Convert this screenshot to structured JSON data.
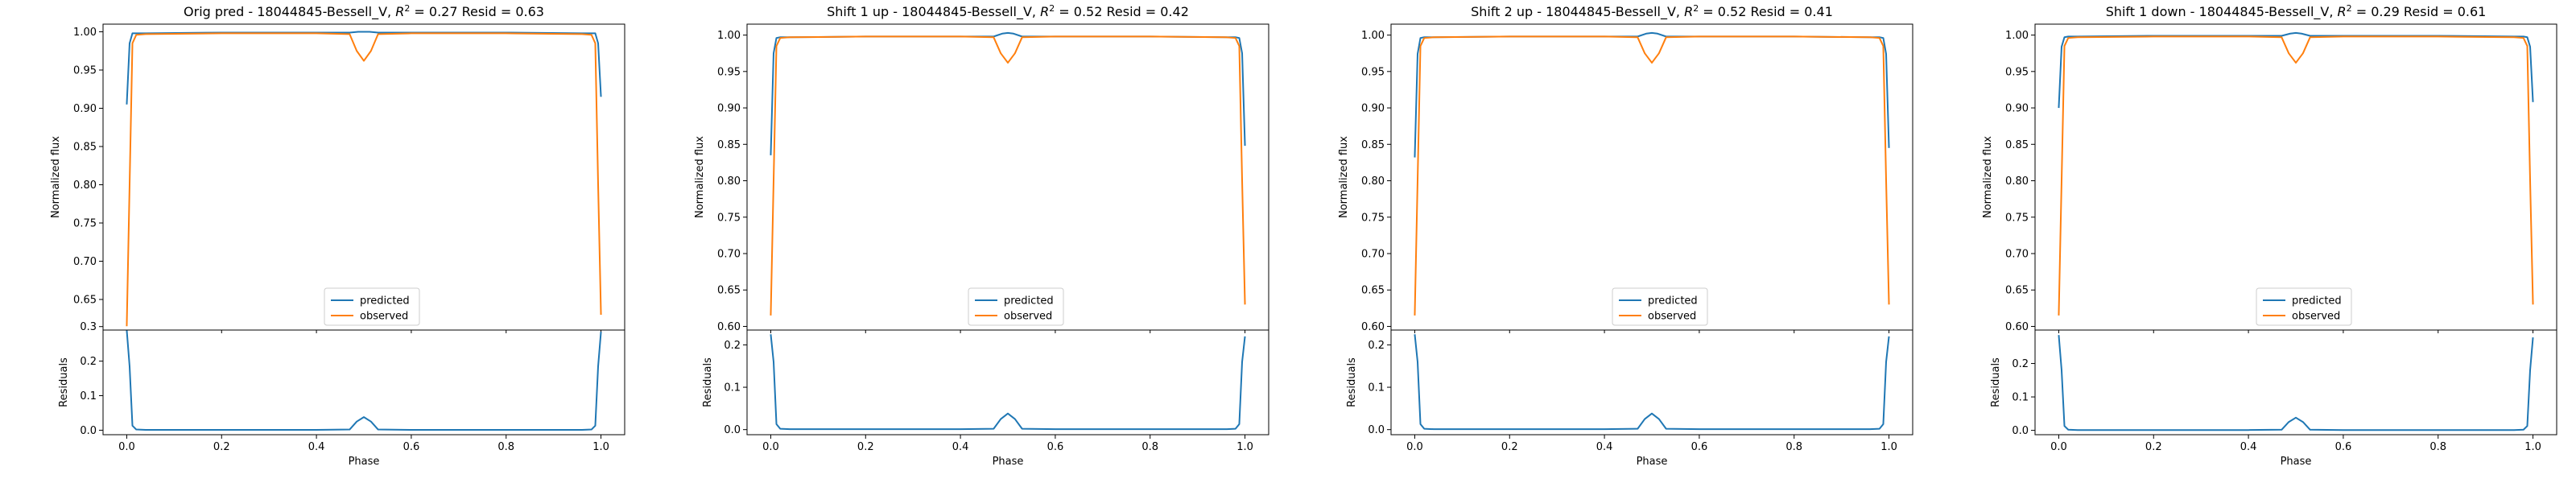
{
  "figure": {
    "colors": {
      "predicted": "#1f77b4",
      "observed": "#ff7f0e",
      "axes": "#000000",
      "background": "#ffffff"
    }
  },
  "chart_data": [
    {
      "type": "line",
      "title": "Orig pred - 18044845-Bessell_V, R² = 0.27 Resid = 0.63",
      "title_parts": [
        "Orig pred - 18044845-Bessell_V, ",
        "R",
        "2",
        " = 0.27 Resid = 0.63"
      ],
      "legend": {
        "entries": [
          "predicted",
          "observed"
        ],
        "placement": "lower-center"
      },
      "flux": {
        "ylabel": "Normalized flux",
        "ylim": [
          0.61,
          1.01
        ],
        "yticks": [
          0.65,
          0.7,
          0.75,
          0.8,
          0.85,
          0.9,
          0.95,
          1.0
        ],
        "ytick_labels": [
          "0.65",
          "0.70",
          "0.75",
          "0.80",
          "0.85",
          "0.90",
          "0.95",
          "1.00"
        ],
        "series": [
          {
            "name": "predicted",
            "x": [
              0,
              0.006,
              0.012,
              0.02,
              0.04,
              0.2,
              0.4,
              0.47,
              0.488,
              0.5,
              0.512,
              0.53,
              0.6,
              0.8,
              0.96,
              0.98,
              0.988,
              0.994,
              1.0
            ],
            "y": [
              0.905,
              0.985,
              0.998,
              0.998,
              0.998,
              0.999,
              0.999,
              0.999,
              1.0,
              1.0,
              1.0,
              0.999,
              0.999,
              0.999,
              0.998,
              0.998,
              0.998,
              0.985,
              0.915
            ]
          },
          {
            "name": "observed",
            "x": [
              0,
              0.006,
              0.012,
              0.02,
              0.04,
              0.2,
              0.4,
              0.47,
              0.485,
              0.5,
              0.515,
              0.53,
              0.6,
              0.8,
              0.96,
              0.98,
              0.988,
              0.994,
              1.0
            ],
            "y": [
              0.615,
              0.8,
              0.985,
              0.996,
              0.997,
              0.998,
              0.998,
              0.997,
              0.975,
              0.962,
              0.975,
              0.997,
              0.998,
              0.998,
              0.997,
              0.996,
              0.985,
              0.8,
              0.63
            ]
          }
        ]
      },
      "residuals": {
        "ylabel": "Residuals",
        "xlabel": "Phase",
        "xlim": [
          -0.05,
          1.05
        ],
        "xticks": [
          0.0,
          0.2,
          0.4,
          0.6,
          0.8,
          1.0
        ],
        "xtick_labels": [
          "0.0",
          "0.2",
          "0.4",
          "0.6",
          "0.8",
          "1.0"
        ],
        "ylim": [
          -0.013,
          0.29
        ],
        "yticks": [
          0.0,
          0.1,
          0.2,
          0.3
        ],
        "ytick_labels": [
          "0.0",
          "0.1",
          "0.2",
          "0.3"
        ],
        "series": [
          {
            "name": "residuals",
            "x": [
              0,
              0.006,
              0.012,
              0.02,
              0.04,
              0.2,
              0.4,
              0.47,
              0.485,
              0.5,
              0.515,
              0.53,
              0.6,
              0.8,
              0.96,
              0.98,
              0.988,
              0.994,
              1.0
            ],
            "y": [
              0.29,
              0.185,
              0.013,
              0.002,
              0.001,
              0.001,
              0.001,
              0.002,
              0.025,
              0.038,
              0.025,
              0.002,
              0.001,
              0.001,
              0.001,
              0.002,
              0.013,
              0.185,
              0.285
            ]
          }
        ]
      }
    },
    {
      "type": "line",
      "title": "Shift 1 up - 18044845-Bessell_V, R² = 0.52 Resid = 0.42",
      "title_parts": [
        "Shift 1 up - 18044845-Bessell_V, ",
        "R",
        "2",
        " = 0.52 Resid = 0.42"
      ],
      "legend": {
        "entries": [
          "predicted",
          "observed"
        ],
        "placement": "lower-center"
      },
      "flux": {
        "ylabel": "Normalized flux",
        "ylim": [
          0.595,
          1.015
        ],
        "yticks": [
          0.6,
          0.65,
          0.7,
          0.75,
          0.8,
          0.85,
          0.9,
          0.95,
          1.0
        ],
        "ytick_labels": [
          "0.60",
          "0.65",
          "0.70",
          "0.75",
          "0.80",
          "0.85",
          "0.90",
          "0.95",
          "1.00"
        ],
        "series": [
          {
            "name": "predicted",
            "x": [
              0,
              0.006,
              0.012,
              0.02,
              0.04,
              0.2,
              0.4,
              0.47,
              0.488,
              0.5,
              0.512,
              0.53,
              0.6,
              0.8,
              0.96,
              0.98,
              0.988,
              0.994,
              1.0
            ],
            "y": [
              0.835,
              0.975,
              0.996,
              0.997,
              0.997,
              0.998,
              0.998,
              0.998,
              1.002,
              1.003,
              1.002,
              0.998,
              0.998,
              0.998,
              0.997,
              0.997,
              0.996,
              0.975,
              0.848
            ]
          },
          {
            "name": "observed",
            "x": [
              0,
              0.006,
              0.012,
              0.02,
              0.04,
              0.2,
              0.4,
              0.47,
              0.485,
              0.5,
              0.515,
              0.53,
              0.6,
              0.8,
              0.96,
              0.98,
              0.988,
              0.994,
              1.0
            ],
            "y": [
              0.615,
              0.8,
              0.985,
              0.996,
              0.997,
              0.998,
              0.998,
              0.997,
              0.975,
              0.962,
              0.975,
              0.997,
              0.998,
              0.998,
              0.997,
              0.996,
              0.985,
              0.8,
              0.63
            ]
          }
        ]
      },
      "residuals": {
        "ylabel": "Residuals",
        "xlabel": "Phase",
        "xlim": [
          -0.05,
          1.05
        ],
        "xticks": [
          0.0,
          0.2,
          0.4,
          0.6,
          0.8,
          1.0
        ],
        "xtick_labels": [
          "0.0",
          "0.2",
          "0.4",
          "0.6",
          "0.8",
          "1.0"
        ],
        "ylim": [
          -0.012,
          0.235
        ],
        "yticks": [
          0.0,
          0.1,
          0.2
        ],
        "ytick_labels": [
          "0.0",
          "0.1",
          "0.2"
        ],
        "series": [
          {
            "name": "residuals",
            "x": [
              0,
              0.006,
              0.012,
              0.02,
              0.04,
              0.2,
              0.4,
              0.47,
              0.485,
              0.5,
              0.515,
              0.53,
              0.6,
              0.8,
              0.96,
              0.98,
              0.988,
              0.994,
              1.0
            ],
            "y": [
              0.225,
              0.16,
              0.013,
              0.002,
              0.001,
              0.001,
              0.001,
              0.002,
              0.025,
              0.038,
              0.025,
              0.002,
              0.001,
              0.001,
              0.001,
              0.002,
              0.013,
              0.16,
              0.22
            ]
          }
        ]
      }
    },
    {
      "type": "line",
      "title": "Shift 2 up - 18044845-Bessell_V, R² = 0.52 Resid = 0.41",
      "title_parts": [
        "Shift 2 up - 18044845-Bessell_V, ",
        "R",
        "2",
        " = 0.52 Resid = 0.41"
      ],
      "legend": {
        "entries": [
          "predicted",
          "observed"
        ],
        "placement": "lower-center"
      },
      "flux": {
        "ylabel": "Normalized flux",
        "ylim": [
          0.595,
          1.015
        ],
        "yticks": [
          0.6,
          0.65,
          0.7,
          0.75,
          0.8,
          0.85,
          0.9,
          0.95,
          1.0
        ],
        "ytick_labels": [
          "0.60",
          "0.65",
          "0.70",
          "0.75",
          "0.80",
          "0.85",
          "0.90",
          "0.95",
          "1.00"
        ],
        "series": [
          {
            "name": "predicted",
            "x": [
              0,
              0.006,
              0.012,
              0.02,
              0.04,
              0.2,
              0.4,
              0.47,
              0.488,
              0.5,
              0.512,
              0.53,
              0.6,
              0.8,
              0.96,
              0.98,
              0.988,
              0.994,
              1.0
            ],
            "y": [
              0.832,
              0.974,
              0.996,
              0.997,
              0.997,
              0.998,
              0.998,
              0.998,
              1.002,
              1.003,
              1.002,
              0.998,
              0.998,
              0.998,
              0.997,
              0.997,
              0.996,
              0.974,
              0.845
            ]
          },
          {
            "name": "observed",
            "x": [
              0,
              0.006,
              0.012,
              0.02,
              0.04,
              0.2,
              0.4,
              0.47,
              0.485,
              0.5,
              0.515,
              0.53,
              0.6,
              0.8,
              0.96,
              0.98,
              0.988,
              0.994,
              1.0
            ],
            "y": [
              0.615,
              0.8,
              0.985,
              0.996,
              0.997,
              0.998,
              0.998,
              0.997,
              0.975,
              0.962,
              0.975,
              0.997,
              0.998,
              0.998,
              0.997,
              0.996,
              0.985,
              0.8,
              0.63
            ]
          }
        ]
      },
      "residuals": {
        "ylabel": "Residuals",
        "xlabel": "Phase",
        "xlim": [
          -0.05,
          1.05
        ],
        "xticks": [
          0.0,
          0.2,
          0.4,
          0.6,
          0.8,
          1.0
        ],
        "xtick_labels": [
          "0.0",
          "0.2",
          "0.4",
          "0.6",
          "0.8",
          "1.0"
        ],
        "ylim": [
          -0.012,
          0.235
        ],
        "yticks": [
          0.0,
          0.1,
          0.2
        ],
        "ytick_labels": [
          "0.0",
          "0.1",
          "0.2"
        ],
        "series": [
          {
            "name": "residuals",
            "x": [
              0,
              0.006,
              0.012,
              0.02,
              0.04,
              0.2,
              0.4,
              0.47,
              0.485,
              0.5,
              0.515,
              0.53,
              0.6,
              0.8,
              0.96,
              0.98,
              0.988,
              0.994,
              1.0
            ],
            "y": [
              0.225,
              0.16,
              0.013,
              0.002,
              0.001,
              0.001,
              0.001,
              0.002,
              0.025,
              0.038,
              0.025,
              0.002,
              0.001,
              0.001,
              0.001,
              0.002,
              0.013,
              0.16,
              0.22
            ]
          }
        ]
      }
    },
    {
      "type": "line",
      "title": "Shift 1 down - 18044845-Bessell_V, R² = 0.29 Resid = 0.61",
      "title_parts": [
        "Shift 1 down - 18044845-Bessell_V, ",
        "R",
        "2",
        " = 0.29 Resid = 0.61"
      ],
      "legend": {
        "entries": [
          "predicted",
          "observed"
        ],
        "placement": "lower-center"
      },
      "flux": {
        "ylabel": "Normalized flux",
        "ylim": [
          0.595,
          1.015
        ],
        "yticks": [
          0.6,
          0.65,
          0.7,
          0.75,
          0.8,
          0.85,
          0.9,
          0.95,
          1.0
        ],
        "ytick_labels": [
          "0.60",
          "0.65",
          "0.70",
          "0.75",
          "0.80",
          "0.85",
          "0.90",
          "0.95",
          "1.00"
        ],
        "series": [
          {
            "name": "predicted",
            "x": [
              0,
              0.006,
              0.012,
              0.02,
              0.04,
              0.2,
              0.4,
              0.47,
              0.488,
              0.5,
              0.512,
              0.53,
              0.6,
              0.8,
              0.96,
              0.98,
              0.988,
              0.994,
              1.0
            ],
            "y": [
              0.9,
              0.984,
              0.997,
              0.998,
              0.998,
              0.999,
              0.999,
              0.999,
              1.002,
              1.003,
              1.002,
              0.999,
              0.999,
              0.999,
              0.998,
              0.998,
              0.997,
              0.984,
              0.908
            ]
          },
          {
            "name": "observed",
            "x": [
              0,
              0.006,
              0.012,
              0.02,
              0.04,
              0.2,
              0.4,
              0.47,
              0.485,
              0.5,
              0.515,
              0.53,
              0.6,
              0.8,
              0.96,
              0.98,
              0.988,
              0.994,
              1.0
            ],
            "y": [
              0.615,
              0.8,
              0.985,
              0.996,
              0.997,
              0.998,
              0.998,
              0.997,
              0.975,
              0.962,
              0.975,
              0.997,
              0.998,
              0.998,
              0.997,
              0.996,
              0.985,
              0.8,
              0.63
            ]
          }
        ]
      },
      "residuals": {
        "ylabel": "Residuals",
        "xlabel": "Phase",
        "xlim": [
          -0.05,
          1.05
        ],
        "xticks": [
          0.0,
          0.2,
          0.4,
          0.6,
          0.8,
          1.0
        ],
        "xtick_labels": [
          "0.0",
          "0.2",
          "0.4",
          "0.6",
          "0.8",
          "1.0"
        ],
        "ylim": [
          -0.013,
          0.3
        ],
        "yticks": [
          0.0,
          0.1,
          0.2
        ],
        "ytick_labels": [
          "0.0",
          "0.1",
          "0.2"
        ],
        "series": [
          {
            "name": "residuals",
            "x": [
              0,
              0.006,
              0.012,
              0.02,
              0.04,
              0.2,
              0.4,
              0.47,
              0.485,
              0.5,
              0.515,
              0.53,
              0.6,
              0.8,
              0.96,
              0.98,
              0.988,
              0.994,
              1.0
            ],
            "y": [
              0.285,
              0.18,
              0.013,
              0.002,
              0.001,
              0.001,
              0.001,
              0.002,
              0.025,
              0.038,
              0.025,
              0.002,
              0.001,
              0.001,
              0.001,
              0.002,
              0.013,
              0.18,
              0.278
            ]
          }
        ]
      }
    }
  ]
}
